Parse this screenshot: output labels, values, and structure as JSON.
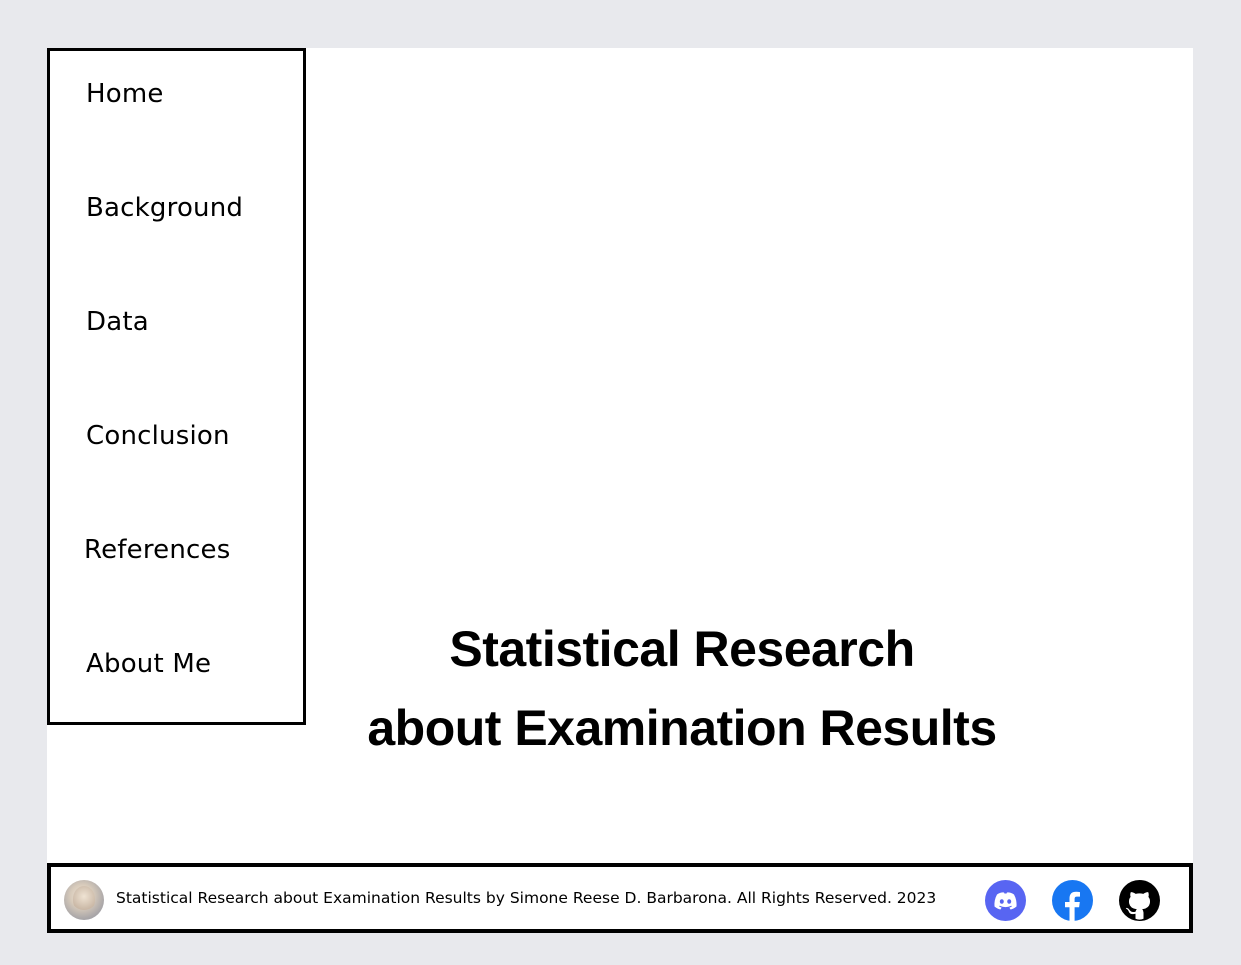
{
  "nav": {
    "items": [
      {
        "label": "Home"
      },
      {
        "label": "Background"
      },
      {
        "label": "Data"
      },
      {
        "label": "Conclusion"
      },
      {
        "label": "References"
      },
      {
        "label": "About Me"
      }
    ]
  },
  "hero": {
    "line1": "Statistical Research",
    "line2": "about Examination Results"
  },
  "footer": {
    "text": "Statistical Research  about Examination Results by Simone Reese D. Barbarona. All Rights Reserved. 2023",
    "social": [
      {
        "icon": "discord-icon",
        "color": "#5865f2"
      },
      {
        "icon": "facebook-icon",
        "color": "#1877f2"
      },
      {
        "icon": "github-icon",
        "color": "#000000"
      }
    ]
  }
}
